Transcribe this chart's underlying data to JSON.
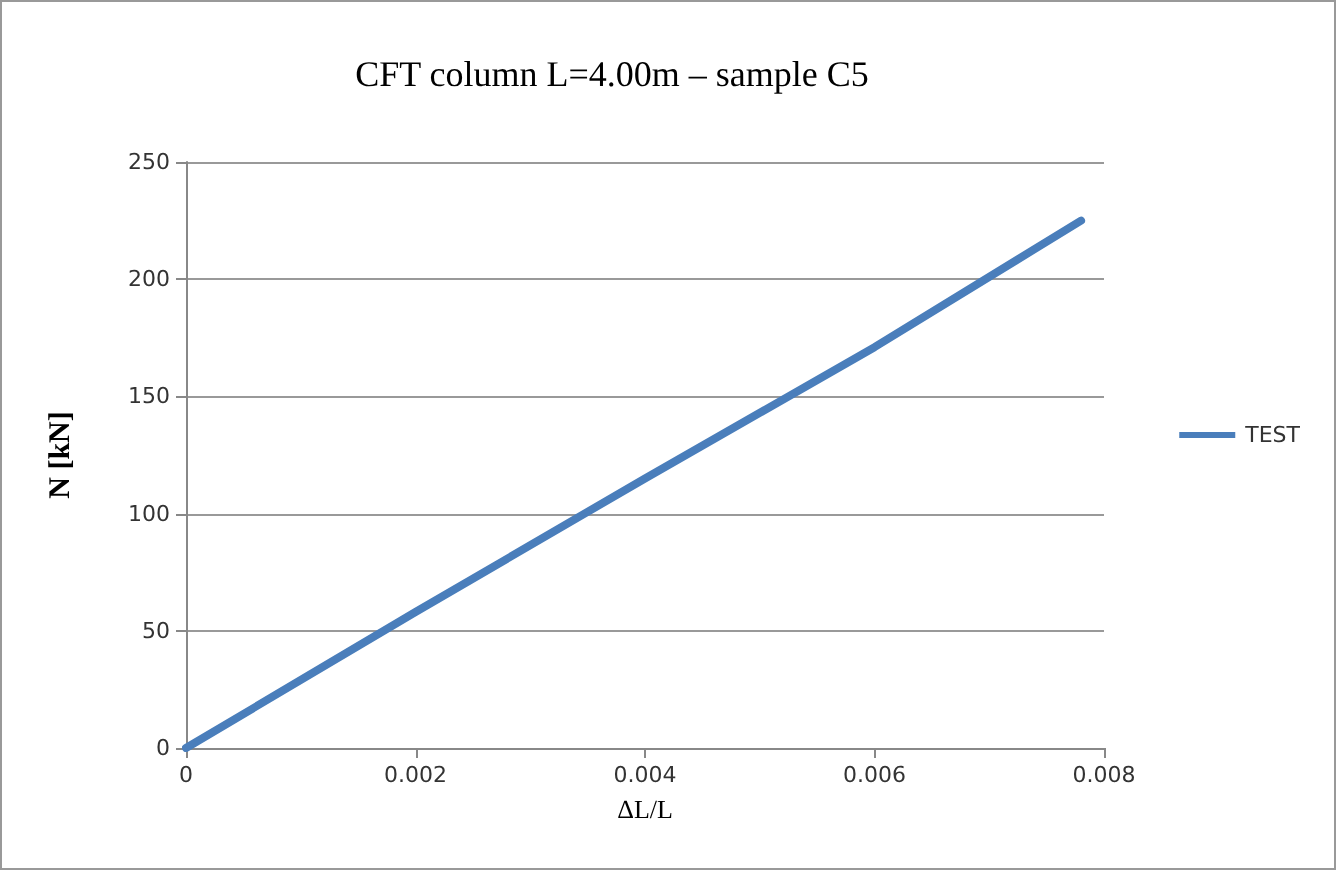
{
  "chart_data": {
    "type": "line",
    "title": "CFT column L=4.00m – sample C5",
    "xlabel": "ΔL/L",
    "ylabel": "N [kN]",
    "series": [
      {
        "name": "TEST",
        "color": "#4a7ebb",
        "x": [
          0,
          0.002,
          0.004,
          0.006,
          0.0078
        ],
        "values": [
          0,
          58,
          115,
          171,
          225
        ]
      }
    ],
    "xlim": [
      0,
      0.008
    ],
    "xticks": [
      0,
      0.002,
      0.004,
      0.006,
      0.008
    ],
    "ylim": [
      0,
      250
    ],
    "yticks": [
      0,
      50,
      100,
      150,
      200,
      250
    ],
    "grid": "y",
    "legend": "right",
    "marker": "none",
    "line_style": "solid"
  }
}
